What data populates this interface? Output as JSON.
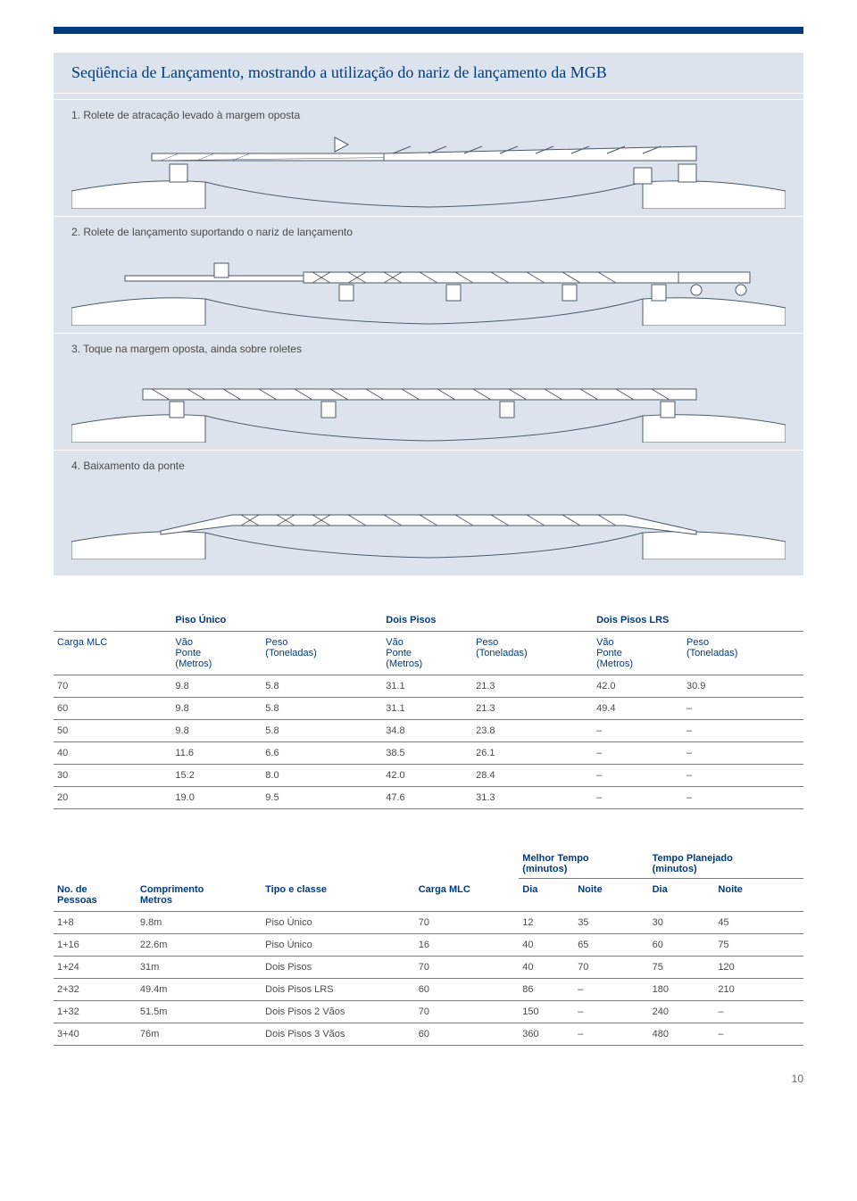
{
  "palette": {
    "accent": "#003a80",
    "panel_bg": "#dce3ec",
    "text": "#4a4a4a",
    "rule": "#7a7a7a",
    "diagram_fill": "#dce3ec",
    "diagram_stroke": "#4a5a6a"
  },
  "panel": {
    "title": "Seqüência de Lançamento, mostrando a utilização do nariz de lançamento da MGB",
    "steps": [
      {
        "label": "1. Rolete de atracação levado à margem oposta"
      },
      {
        "label": "2. Rolete de lançamento suportando o nariz de lançamento"
      },
      {
        "label": "3. Toque na margem oposta, ainda sobre roletes"
      },
      {
        "label": "4. Baixamento da ponte"
      }
    ]
  },
  "table1": {
    "group_headers": [
      "Piso Único",
      "Dois Pisos",
      "Dois Pisos LRS"
    ],
    "row_label": "Carga MLC",
    "col_span_label": "Vão\nPonte\n(Metros)",
    "col_weight_label": "Peso\n(Toneladas)",
    "rows": [
      {
        "mlc": "70",
        "v1": "9.8",
        "p1": "5.8",
        "v2": "31.1",
        "p2": "21.3",
        "v3": "42.0",
        "p3": "30.9"
      },
      {
        "mlc": "60",
        "v1": "9.8",
        "p1": "5.8",
        "v2": "31.1",
        "p2": "21.3",
        "v3": "49.4",
        "p3": "–"
      },
      {
        "mlc": "50",
        "v1": "9.8",
        "p1": "5.8",
        "v2": "34.8",
        "p2": "23.8",
        "v3": "–",
        "p3": "–"
      },
      {
        "mlc": "40",
        "v1": "11.6",
        "p1": "6.6",
        "v2": "38.5",
        "p2": "26.1",
        "v3": "–",
        "p3": "–"
      },
      {
        "mlc": "30",
        "v1": "15.2",
        "p1": "8.0",
        "v2": "42.0",
        "p2": "28.4",
        "v3": "–",
        "p3": "–"
      },
      {
        "mlc": "20",
        "v1": "19.0",
        "p1": "9.5",
        "v2": "47.6",
        "p2": "31.3",
        "v3": "–",
        "p3": "–"
      }
    ]
  },
  "table2": {
    "top_headers": {
      "melhor": "Melhor Tempo\n(minutos)",
      "planejado": "Tempo Planejado\n(minutos)"
    },
    "col_headers": {
      "pessoas": "No. de\nPessoas",
      "comprimento": "Comprimento\nMetros",
      "tipo": "Tipo e classe",
      "carga": "Carga MLC",
      "dia": "Dia",
      "noite": "Noite"
    },
    "rows": [
      {
        "pessoas": "1+8",
        "comp": "9.8m",
        "tipo": "Piso Único",
        "mlc": "70",
        "md": "12",
        "mn": "35",
        "pd": "30",
        "pn": "45"
      },
      {
        "pessoas": "1+16",
        "comp": "22.6m",
        "tipo": "Piso Único",
        "mlc": "16",
        "md": "40",
        "mn": "65",
        "pd": "60",
        "pn": "75"
      },
      {
        "pessoas": "1+24",
        "comp": "31m",
        "tipo": "Dois Pisos",
        "mlc": "70",
        "md": "40",
        "mn": "70",
        "pd": "75",
        "pn": "120"
      },
      {
        "pessoas": "2+32",
        "comp": "49.4m",
        "tipo": "Dois Pisos LRS",
        "mlc": "60",
        "md": "86",
        "mn": "–",
        "pd": "180",
        "pn": "210"
      },
      {
        "pessoas": "1+32",
        "comp": "51.5m",
        "tipo": "Dois Pisos 2 Vãos",
        "mlc": "70",
        "md": "150",
        "mn": "–",
        "pd": "240",
        "pn": "–"
      },
      {
        "pessoas": "3+40",
        "comp": "76m",
        "tipo": "Dois Pisos 3 Vãos",
        "mlc": "60",
        "md": "360",
        "mn": "–",
        "pd": "480",
        "pn": "–"
      }
    ]
  },
  "page_number": "10"
}
